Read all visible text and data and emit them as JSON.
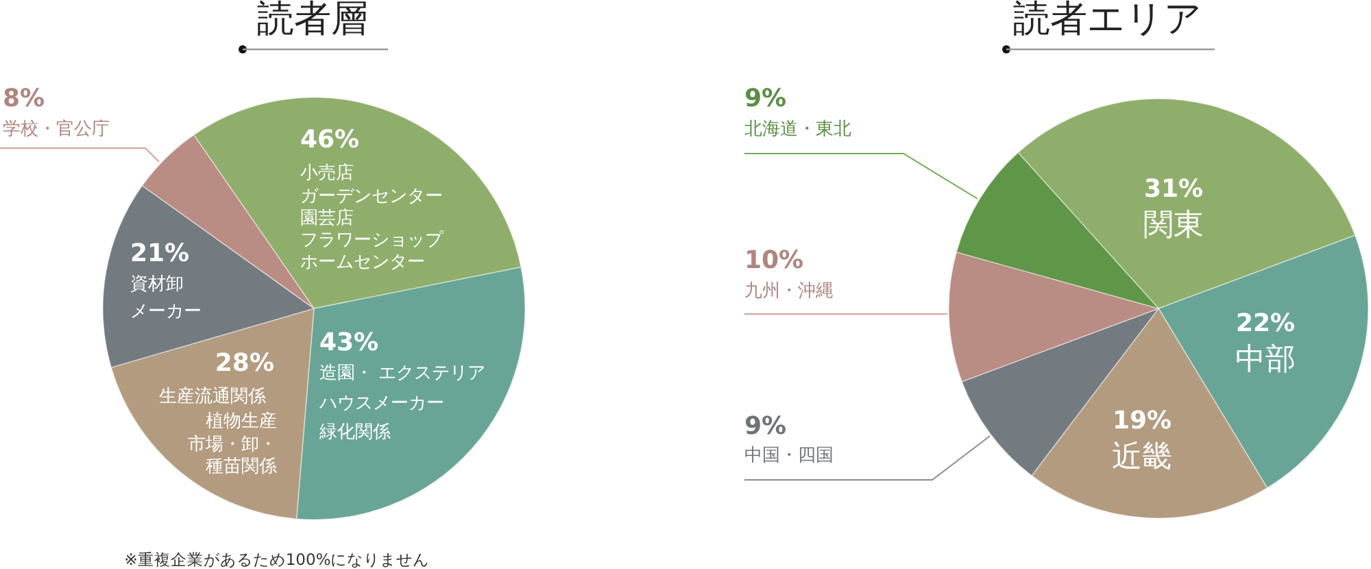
{
  "chart_data": [
    {
      "type": "pie",
      "title": "読者層",
      "categories": [
        "小売店ガーデンセンター園芸店フラワーショップホームセンター",
        "造園・ エクステリアハウスメーカー緑化関係",
        "生産流通関係植物生産市場・卸・種苗関係",
        "資材卸メーカー",
        "学校・官公庁"
      ],
      "values": [
        46,
        43,
        28,
        21,
        8
      ],
      "value_labels": [
        "46%",
        "43%",
        "28%",
        "21%",
        "8%"
      ],
      "colors": [
        "#8fae6c",
        "#68a596",
        "#b39b7f",
        "#737a80",
        "#b98c84"
      ],
      "annotations": [
        "※重複企業があるため100%になりません"
      ]
    },
    {
      "type": "pie",
      "title": "読者エリア",
      "categories": [
        "関東",
        "中部",
        "近畿",
        "中国・四国",
        "九州・沖縄",
        "北海道・東北"
      ],
      "values": [
        31,
        22,
        19,
        9,
        10,
        9
      ],
      "value_labels": [
        "31%",
        "22%",
        "19%",
        "9%",
        "10%",
        "9%"
      ],
      "colors": [
        "#8fae6c",
        "#68a596",
        "#b39b7f",
        "#737a80",
        "#b98c84",
        "#5f9648"
      ]
    }
  ]
}
